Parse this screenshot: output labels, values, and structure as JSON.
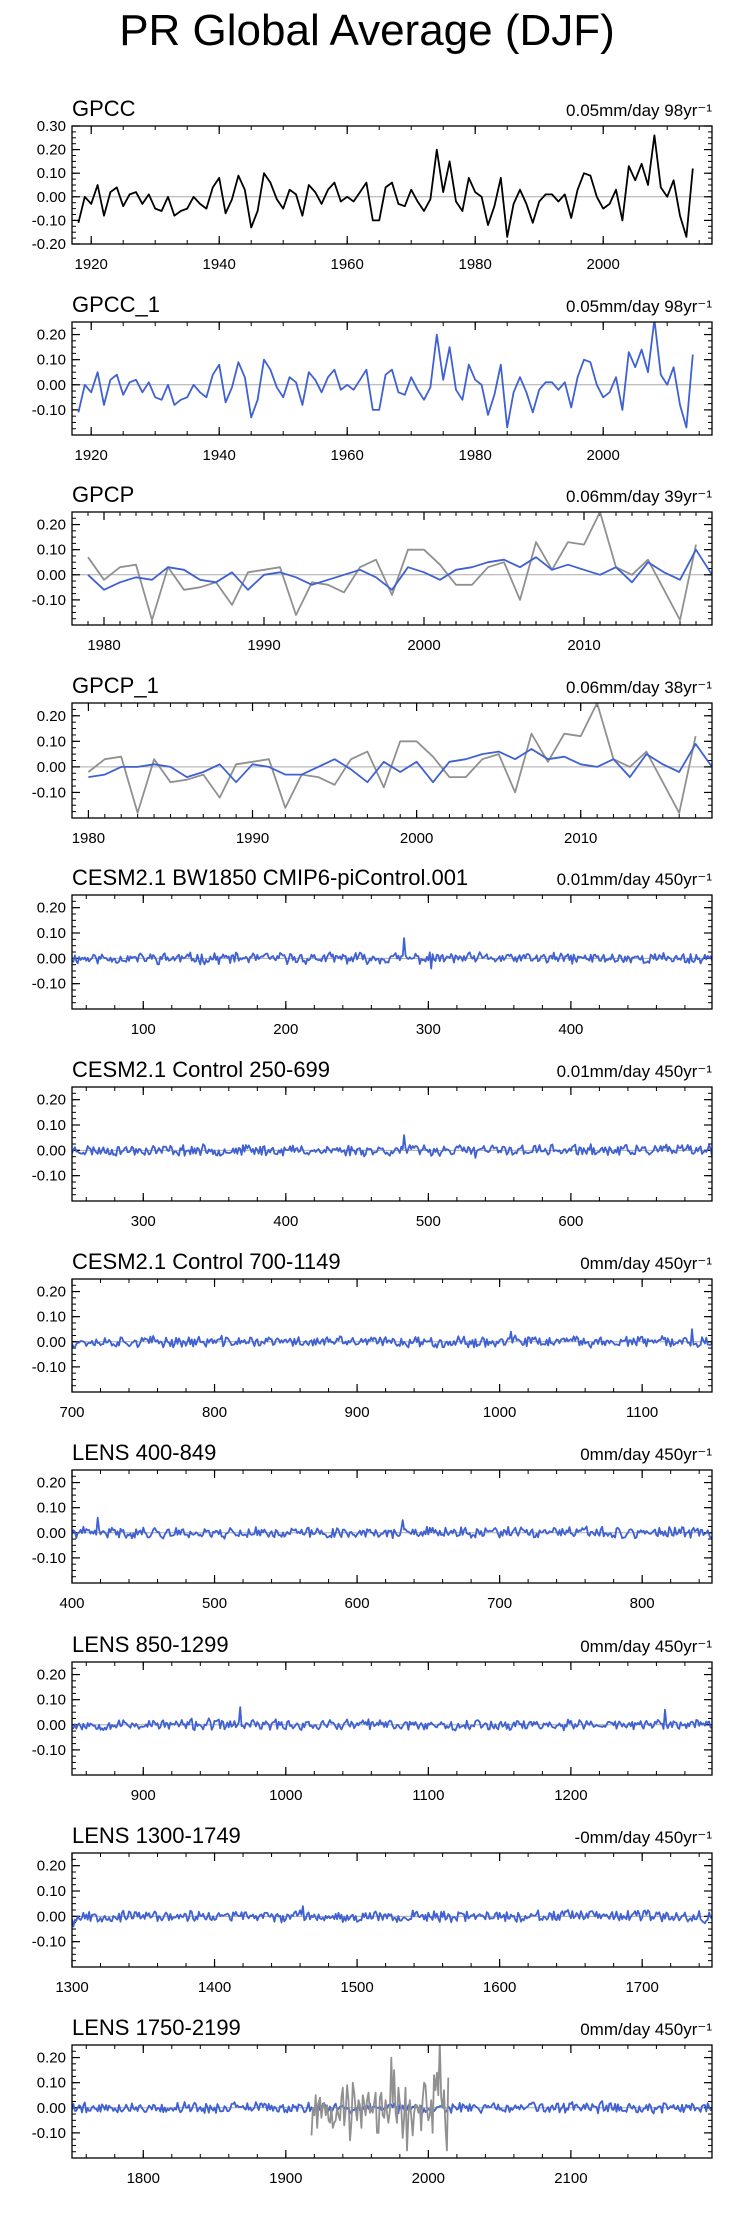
{
  "title": "PR Global Average (DJF)",
  "chart_data": [
    {
      "type": "line",
      "title": "GPCC",
      "right_label": "0.05mm/day 98yr⁻¹",
      "ylim": [
        -0.2,
        0.3
      ],
      "yticks": [
        "0.30",
        "0.20",
        "0.10",
        "0.00",
        "-0.10",
        "-0.20"
      ],
      "xlim": [
        1917,
        2017
      ],
      "xticks": [
        1920,
        1940,
        1960,
        1980,
        2000
      ],
      "series": [
        {
          "color": "#000000",
          "x_start": 1918,
          "values": [
            -0.11,
            0.0,
            -0.03,
            0.05,
            -0.08,
            0.02,
            0.04,
            -0.04,
            0.01,
            0.02,
            -0.03,
            0.01,
            -0.05,
            -0.06,
            0.0,
            -0.08,
            -0.06,
            -0.05,
            0.0,
            -0.03,
            -0.05,
            0.04,
            0.08,
            -0.07,
            -0.01,
            0.09,
            0.03,
            -0.13,
            -0.06,
            0.1,
            0.06,
            -0.01,
            -0.05,
            0.03,
            0.01,
            -0.08,
            0.05,
            0.02,
            -0.03,
            0.03,
            0.06,
            -0.02,
            0.0,
            -0.02,
            0.02,
            0.06,
            -0.1,
            -0.1,
            0.04,
            0.06,
            -0.03,
            -0.04,
            0.03,
            -0.02,
            -0.06,
            -0.01,
            0.2,
            0.02,
            0.15,
            -0.02,
            -0.06,
            0.08,
            0.02,
            0.0,
            -0.12,
            -0.04,
            0.08,
            -0.17,
            -0.03,
            0.03,
            -0.03,
            -0.11,
            -0.02,
            0.01,
            0.01,
            -0.02,
            0.01,
            -0.09,
            0.03,
            0.1,
            0.09,
            0.0,
            -0.05,
            -0.03,
            0.03,
            -0.1,
            0.13,
            0.07,
            0.14,
            0.05,
            0.26,
            0.04,
            0.0,
            0.07,
            -0.08,
            -0.17,
            0.12
          ]
        }
      ]
    },
    {
      "type": "line",
      "title": "GPCC_1",
      "right_label": "0.05mm/day 98yr⁻¹",
      "ylim": [
        -0.2,
        0.25
      ],
      "yticks": [
        "0.20",
        "0.10",
        "0.00",
        "-0.10"
      ],
      "xlim": [
        1917,
        2017
      ],
      "xticks": [
        1920,
        1940,
        1960,
        1980,
        2000
      ],
      "series": [
        {
          "color": "#3f61d1",
          "x_start": 1918,
          "values": [
            -0.11,
            0.0,
            -0.03,
            0.05,
            -0.08,
            0.02,
            0.04,
            -0.04,
            0.01,
            0.02,
            -0.03,
            0.01,
            -0.05,
            -0.06,
            0.0,
            -0.08,
            -0.06,
            -0.05,
            0.0,
            -0.03,
            -0.05,
            0.04,
            0.08,
            -0.07,
            -0.01,
            0.09,
            0.03,
            -0.13,
            -0.06,
            0.1,
            0.06,
            -0.01,
            -0.05,
            0.03,
            0.01,
            -0.08,
            0.05,
            0.02,
            -0.03,
            0.03,
            0.06,
            -0.02,
            0.0,
            -0.02,
            0.02,
            0.06,
            -0.1,
            -0.1,
            0.04,
            0.06,
            -0.03,
            -0.04,
            0.03,
            -0.02,
            -0.06,
            -0.01,
            0.2,
            0.02,
            0.15,
            -0.02,
            -0.06,
            0.08,
            0.02,
            0.0,
            -0.12,
            -0.04,
            0.08,
            -0.17,
            -0.03,
            0.03,
            -0.03,
            -0.11,
            -0.02,
            0.01,
            0.01,
            -0.02,
            0.01,
            -0.09,
            0.03,
            0.1,
            0.09,
            0.0,
            -0.05,
            -0.03,
            0.03,
            -0.1,
            0.13,
            0.07,
            0.14,
            0.05,
            0.26,
            0.04,
            0.0,
            0.07,
            -0.08,
            -0.17,
            0.12
          ]
        }
      ]
    },
    {
      "type": "line",
      "title": "GPCP",
      "right_label": "0.06mm/day 39yr⁻¹",
      "ylim": [
        -0.2,
        0.25
      ],
      "yticks": [
        "0.20",
        "0.10",
        "0.00",
        "-0.10"
      ],
      "xlim": [
        1978,
        2018
      ],
      "xticks": [
        1980,
        1990,
        2000,
        2010
      ],
      "series": [
        {
          "color": "#909090",
          "x_start": 1979,
          "values": [
            0.07,
            -0.02,
            0.03,
            0.04,
            -0.18,
            0.03,
            -0.06,
            -0.05,
            -0.03,
            -0.12,
            0.01,
            0.02,
            0.03,
            -0.16,
            -0.03,
            -0.04,
            -0.07,
            0.03,
            0.06,
            -0.08,
            0.1,
            0.1,
            0.04,
            -0.04,
            -0.04,
            0.03,
            0.05,
            -0.1,
            0.13,
            0.02,
            0.13,
            0.12,
            0.25,
            0.03,
            0.0,
            0.06,
            -0.06,
            -0.18,
            0.12
          ]
        },
        {
          "color": "#3f61d1",
          "x_start": 1979,
          "values": [
            0.0,
            -0.06,
            -0.03,
            -0.01,
            -0.02,
            0.03,
            0.02,
            -0.02,
            -0.03,
            0.01,
            -0.06,
            0.0,
            0.01,
            -0.01,
            -0.04,
            -0.02,
            0.0,
            0.02,
            -0.01,
            -0.06,
            0.03,
            0.01,
            -0.02,
            0.02,
            0.03,
            0.05,
            0.06,
            0.03,
            0.07,
            0.02,
            0.04,
            0.02,
            0.0,
            0.03,
            -0.03,
            0.05,
            0.01,
            -0.02,
            0.1,
            0.0
          ]
        }
      ]
    },
    {
      "type": "line",
      "title": "GPCP_1",
      "right_label": "0.06mm/day 38yr⁻¹",
      "ylim": [
        -0.2,
        0.25
      ],
      "yticks": [
        "0.20",
        "0.10",
        "0.00",
        "-0.10"
      ],
      "xlim": [
        1979,
        2018
      ],
      "xticks": [
        1980,
        1990,
        2000,
        2010
      ],
      "series": [
        {
          "color": "#909090",
          "x_start": 1980,
          "values": [
            -0.02,
            0.03,
            0.04,
            -0.18,
            0.03,
            -0.06,
            -0.05,
            -0.03,
            -0.12,
            0.01,
            0.02,
            0.03,
            -0.16,
            -0.03,
            -0.04,
            -0.07,
            0.03,
            0.06,
            -0.08,
            0.1,
            0.1,
            0.04,
            -0.04,
            -0.04,
            0.03,
            0.05,
            -0.1,
            0.13,
            0.02,
            0.13,
            0.12,
            0.25,
            0.03,
            0.0,
            0.06,
            -0.06,
            -0.18,
            0.12
          ]
        },
        {
          "color": "#3f61d1",
          "x_start": 1980,
          "values": [
            -0.04,
            -0.03,
            0.0,
            0.0,
            0.01,
            0.0,
            -0.04,
            -0.02,
            0.01,
            -0.06,
            0.01,
            0.0,
            -0.03,
            -0.03,
            0.0,
            0.03,
            -0.01,
            -0.06,
            0.02,
            -0.02,
            0.02,
            -0.06,
            0.02,
            0.03,
            0.05,
            0.06,
            0.03,
            0.07,
            0.03,
            0.04,
            0.01,
            0.0,
            0.03,
            -0.04,
            0.05,
            0.01,
            -0.02,
            0.09,
            0.0
          ]
        }
      ]
    },
    {
      "type": "line",
      "title": "CESM2.1 BW1850 CMIP6-piControl.001",
      "right_label": "0.01mm/day 450yr⁻¹",
      "ylim": [
        -0.2,
        0.25
      ],
      "yticks": [
        "0.20",
        "0.10",
        "0.00",
        "-0.10"
      ],
      "xlim": [
        50,
        499
      ],
      "xticks": [
        100,
        200,
        300,
        400
      ],
      "series": [
        {
          "color": "#3f61d1",
          "x_start": 50,
          "n_years": 450,
          "amplitude": 0.018,
          "seed": 11,
          "spikes": [
            [
              283,
              0.08
            ],
            [
              302,
              -0.04
            ]
          ]
        }
      ]
    },
    {
      "type": "line",
      "title": "CESM2.1 Control 250-699",
      "right_label": "0.01mm/day 450yr⁻¹",
      "ylim": [
        -0.2,
        0.25
      ],
      "yticks": [
        "0.20",
        "0.10",
        "0.00",
        "-0.10"
      ],
      "xlim": [
        250,
        699
      ],
      "xticks": [
        300,
        400,
        500,
        600
      ],
      "series": [
        {
          "color": "#3f61d1",
          "x_start": 250,
          "n_years": 450,
          "amplitude": 0.018,
          "seed": 23,
          "spikes": [
            [
              483,
              0.06
            ],
            [
              533,
              -0.03
            ]
          ]
        }
      ]
    },
    {
      "type": "line",
      "title": "CESM2.1 Control 700-1149",
      "right_label": "0mm/day 450yr⁻¹",
      "ylim": [
        -0.2,
        0.25
      ],
      "yticks": [
        "0.20",
        "0.10",
        "0.00",
        "-0.10"
      ],
      "xlim": [
        700,
        1149
      ],
      "xticks": [
        700,
        800,
        900,
        1000,
        1100
      ],
      "series": [
        {
          "color": "#3f61d1",
          "x_start": 700,
          "n_years": 450,
          "amplitude": 0.018,
          "seed": 37,
          "spikes": [
            [
              1135,
              0.05
            ],
            [
              1008,
              0.04
            ]
          ]
        }
      ]
    },
    {
      "type": "line",
      "title": "LENS 400-849",
      "right_label": "0mm/day 450yr⁻¹",
      "ylim": [
        -0.2,
        0.25
      ],
      "yticks": [
        "0.20",
        "0.10",
        "0.00",
        "-0.10"
      ],
      "xlim": [
        400,
        849
      ],
      "xticks": [
        400,
        500,
        600,
        700,
        800
      ],
      "series": [
        {
          "color": "#3f61d1",
          "x_start": 400,
          "n_years": 450,
          "amplitude": 0.018,
          "seed": 41,
          "spikes": [
            [
              418,
              0.06
            ],
            [
              632,
              0.05
            ]
          ]
        }
      ]
    },
    {
      "type": "line",
      "title": "LENS 850-1299",
      "right_label": "0mm/day 450yr⁻¹",
      "ylim": [
        -0.2,
        0.25
      ],
      "yticks": [
        "0.20",
        "0.10",
        "0.00",
        "-0.10"
      ],
      "xlim": [
        850,
        1299
      ],
      "xticks": [
        900,
        1000,
        1100,
        1200
      ],
      "series": [
        {
          "color": "#3f61d1",
          "x_start": 850,
          "n_years": 450,
          "amplitude": 0.018,
          "seed": 53,
          "spikes": [
            [
              968,
              0.07
            ],
            [
              1266,
              0.06
            ]
          ]
        }
      ]
    },
    {
      "type": "line",
      "title": "LENS 1300-1749",
      "right_label": "-0mm/day 450yr⁻¹",
      "ylim": [
        -0.2,
        0.25
      ],
      "yticks": [
        "0.20",
        "0.10",
        "0.00",
        "-0.10"
      ],
      "xlim": [
        1300,
        1749
      ],
      "xticks": [
        1300,
        1400,
        1500,
        1600,
        1700
      ],
      "series": [
        {
          "color": "#3f61d1",
          "x_start": 1300,
          "n_years": 450,
          "amplitude": 0.018,
          "seed": 67,
          "spikes": [
            [
              1301,
              -0.04
            ],
            [
              1462,
              0.04
            ]
          ]
        }
      ]
    },
    {
      "type": "line",
      "title": "LENS 1750-2199",
      "right_label": "0mm/day 450yr⁻¹",
      "ylim": [
        -0.2,
        0.25
      ],
      "yticks": [
        "0.20",
        "0.10",
        "0.00",
        "-0.10"
      ],
      "xlim": [
        1750,
        2199
      ],
      "xticks": [
        1800,
        1900,
        2000,
        2100
      ],
      "series": [
        {
          "color": "#3f61d1",
          "x_start": 1750,
          "n_years": 450,
          "amplitude": 0.018,
          "seed": 79,
          "spikes": []
        },
        {
          "color": "#909090",
          "x_start": 1918,
          "same_as_values_of": 0
        }
      ]
    }
  ]
}
